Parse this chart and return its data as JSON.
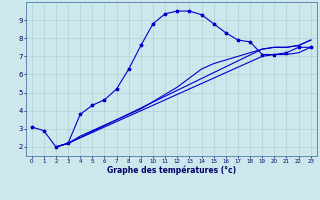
{
  "xlabel": "Graphe des températures (°c)",
  "ylabel": "",
  "background_color": "#cce8ec",
  "grid_color": "#aacccc",
  "line_color": "#0000cc",
  "xlim": [
    -0.5,
    23.5
  ],
  "ylim": [
    1.5,
    10.0
  ],
  "xticks": [
    0,
    1,
    2,
    3,
    4,
    5,
    6,
    7,
    8,
    9,
    10,
    11,
    12,
    13,
    14,
    15,
    16,
    17,
    18,
    19,
    20,
    21,
    22,
    23
  ],
  "yticks": [
    2,
    3,
    4,
    5,
    6,
    7,
    8,
    9
  ],
  "curve1_x": [
    0,
    1,
    2,
    3,
    4,
    5,
    6,
    7,
    8,
    9,
    10,
    11,
    12,
    13,
    14,
    15,
    16,
    17,
    18,
    19,
    20,
    21,
    22,
    23
  ],
  "curve1_y": [
    3.1,
    2.9,
    2.0,
    2.2,
    3.8,
    4.3,
    4.6,
    5.2,
    6.3,
    7.6,
    8.8,
    9.35,
    9.5,
    9.5,
    9.3,
    8.8,
    8.3,
    7.9,
    7.8,
    7.1,
    7.1,
    7.2,
    7.5,
    7.5
  ],
  "curve2_x": [
    2,
    3,
    19,
    20,
    21,
    22,
    23
  ],
  "curve2_y": [
    2.0,
    2.2,
    7.0,
    7.1,
    7.1,
    7.2,
    7.5
  ],
  "curve3_x": [
    2,
    3,
    19,
    20,
    21,
    22,
    23
  ],
  "curve3_y": [
    2.0,
    2.2,
    7.4,
    7.5,
    7.5,
    7.6,
    7.9
  ],
  "curve4_x": [
    2,
    3,
    4,
    5,
    6,
    7,
    8,
    9,
    10,
    11,
    12,
    13,
    14,
    15,
    16,
    17,
    18,
    19,
    20,
    21,
    22,
    23
  ],
  "curve4_y": [
    2.0,
    2.2,
    2.6,
    2.9,
    3.2,
    3.5,
    3.8,
    4.1,
    4.5,
    4.9,
    5.3,
    5.8,
    6.3,
    6.6,
    6.8,
    7.0,
    7.2,
    7.4,
    7.5,
    7.5,
    7.6,
    7.9
  ]
}
